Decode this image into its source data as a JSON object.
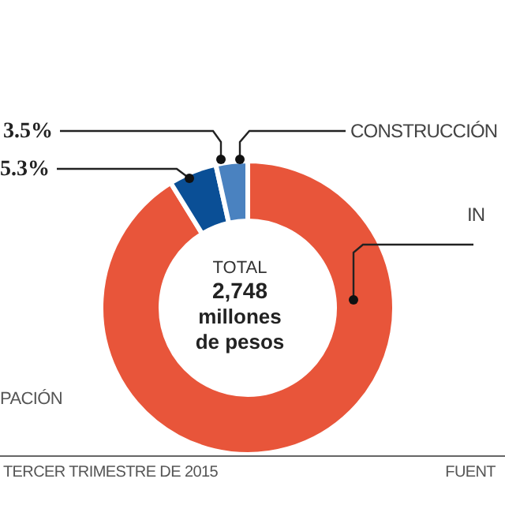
{
  "chart_data": {
    "type": "donut",
    "categories": [
      "IN",
      null,
      "CONSTRUCCIÓN"
    ],
    "values": [
      91.2,
      5.3,
      3.5
    ],
    "colors": [
      "#e8553a",
      "#0a4f96",
      "#4a82c0"
    ],
    "value_labels": [
      null,
      "5.3%",
      "3.5%"
    ],
    "annotations": [
      "TOTAL",
      "2,748",
      "millones",
      "de pesos",
      "PACIÓN",
      "TERCER TRIMESTRE DE 2015",
      "FUENT"
    ]
  }
}
